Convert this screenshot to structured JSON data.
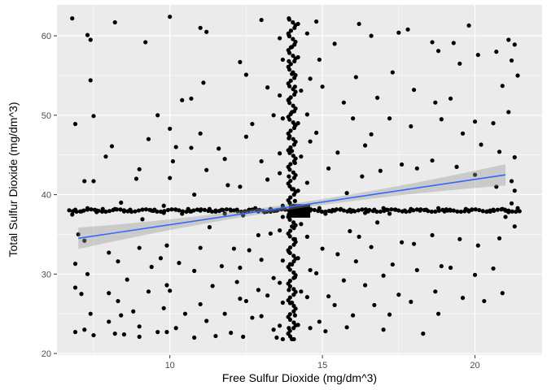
{
  "chart_data": {
    "type": "scatter",
    "xlabel": "Free Sulfur Dioxide (mg/dm^3)",
    "ylabel": "Total Sulfur Dioxide (mg/dm^3)",
    "xlim": [
      6.3,
      22.2
    ],
    "ylim": [
      19.8,
      63.9
    ],
    "x_ticks": [
      10,
      15,
      20
    ],
    "y_ticks": [
      20,
      30,
      40,
      50,
      60
    ],
    "grid": true,
    "panel_background": "#ebebeb",
    "point_color": "#000000",
    "trend_line": {
      "type": "linear",
      "x": [
        7,
        21
      ],
      "y": [
        34.5,
        42.5
      ],
      "color": "#3366ff",
      "confidence_band_color": "#999999"
    },
    "clusters": {
      "horizontal_band_y": 38,
      "vertical_band_x": 14
    },
    "points": [
      [
        6.8,
        62.2
      ],
      [
        7.3,
        60.1
      ],
      [
        7.4,
        59.5
      ],
      [
        7.4,
        54.4
      ],
      [
        7.5,
        49.9
      ],
      [
        6.9,
        48.9
      ],
      [
        7.2,
        41.7
      ],
      [
        7.5,
        41.7
      ],
      [
        6.9,
        38.1
      ],
      [
        7.1,
        37.9
      ],
      [
        7.3,
        38.3
      ],
      [
        7.6,
        38.0
      ],
      [
        6.8,
        37.5
      ],
      [
        7.0,
        35.0
      ],
      [
        7.2,
        34.2
      ],
      [
        6.9,
        31.3
      ],
      [
        7.3,
        30.0
      ],
      [
        6.9,
        28.3
      ],
      [
        7.1,
        27.5
      ],
      [
        7.4,
        25.0
      ],
      [
        6.9,
        22.7
      ],
      [
        7.2,
        23.0
      ],
      [
        7.5,
        22.3
      ],
      [
        8.0,
        24.0
      ],
      [
        8.2,
        22.5
      ],
      [
        8.2,
        61.7
      ],
      [
        8.1,
        46.1
      ],
      [
        7.9,
        44.8
      ],
      [
        8.4,
        39.0
      ],
      [
        8.2,
        38.2
      ],
      [
        7.8,
        38.2
      ],
      [
        8.5,
        37.9
      ],
      [
        8.0,
        32.7
      ],
      [
        8.3,
        31.6
      ],
      [
        8.6,
        29.3
      ],
      [
        8.0,
        27.6
      ],
      [
        8.3,
        26.6
      ],
      [
        8.8,
        25.3
      ],
      [
        8.4,
        24.8
      ],
      [
        9.0,
        23.4
      ],
      [
        8.5,
        22.4
      ],
      [
        9.2,
        59.2
      ],
      [
        9.6,
        50.0
      ],
      [
        9.3,
        47.0
      ],
      [
        9.0,
        43.2
      ],
      [
        8.9,
        42.0
      ],
      [
        9.5,
        38.1
      ],
      [
        9.8,
        37.7
      ],
      [
        9.1,
        36.9
      ],
      [
        9.0,
        33.3
      ],
      [
        9.7,
        32.0
      ],
      [
        9.4,
        30.9
      ],
      [
        9.3,
        27.8
      ],
      [
        9.8,
        25.7
      ],
      [
        9.6,
        22.7
      ],
      [
        9.0,
        22.1
      ],
      [
        10.0,
        62.4
      ],
      [
        10.0,
        48.3
      ],
      [
        10.2,
        46.0
      ],
      [
        10.1,
        44.2
      ],
      [
        10.0,
        42.1
      ],
      [
        9.8,
        38.6
      ],
      [
        10.2,
        38.1
      ],
      [
        10.4,
        37.6
      ],
      [
        9.9,
        33.6
      ],
      [
        10.3,
        31.4
      ],
      [
        9.9,
        28.6
      ],
      [
        10.0,
        27.9
      ],
      [
        10.5,
        25.0
      ],
      [
        10.2,
        23.2
      ],
      [
        9.9,
        22.7
      ],
      [
        10.7,
        52.1
      ],
      [
        10.4,
        51.9
      ],
      [
        11.0,
        61.0
      ],
      [
        11.2,
        60.5
      ],
      [
        11.1,
        54.1
      ],
      [
        11.0,
        47.7
      ],
      [
        10.7,
        45.9
      ],
      [
        11.2,
        43.1
      ],
      [
        10.8,
        40.0
      ],
      [
        11.3,
        38.2
      ],
      [
        11.0,
        38.0
      ],
      [
        10.7,
        37.9
      ],
      [
        11.3,
        35.9
      ],
      [
        11.0,
        33.3
      ],
      [
        10.8,
        30.4
      ],
      [
        11.4,
        28.5
      ],
      [
        11.0,
        26.2
      ],
      [
        11.2,
        24.1
      ],
      [
        10.8,
        22.0
      ],
      [
        11.5,
        22.2
      ],
      [
        11.6,
        45.8
      ],
      [
        11.8,
        44.5
      ],
      [
        11.9,
        41.2
      ],
      [
        11.7,
        38.1
      ],
      [
        12.0,
        38.0
      ],
      [
        11.8,
        37.6
      ],
      [
        12.1,
        33.2
      ],
      [
        11.7,
        31.0
      ],
      [
        12.2,
        29.0
      ],
      [
        12.3,
        26.9
      ],
      [
        11.8,
        25.0
      ],
      [
        12.0,
        22.6
      ],
      [
        12.3,
        56.7
      ],
      [
        12.5,
        55.1
      ],
      [
        12.7,
        48.9
      ],
      [
        12.5,
        47.3
      ],
      [
        12.3,
        41.0
      ],
      [
        12.6,
        38.1
      ],
      [
        12.8,
        38.3
      ],
      [
        12.4,
        37.4
      ],
      [
        12.9,
        34.9
      ],
      [
        12.6,
        33.0
      ],
      [
        12.3,
        30.8
      ],
      [
        12.9,
        28.0
      ],
      [
        12.5,
        26.6
      ],
      [
        12.7,
        24.5
      ],
      [
        12.4,
        22.1
      ],
      [
        13.0,
        62.0
      ],
      [
        13.2,
        53.5
      ],
      [
        13.4,
        50.0
      ],
      [
        13.0,
        44.2
      ],
      [
        13.2,
        41.9
      ],
      [
        13.3,
        38.2
      ],
      [
        13.1,
        37.8
      ],
      [
        13.5,
        38.0
      ],
      [
        13.3,
        35.1
      ],
      [
        13.0,
        31.8
      ],
      [
        13.4,
        29.5
      ],
      [
        13.2,
        27.3
      ],
      [
        13.0,
        24.7
      ],
      [
        13.4,
        23.0
      ],
      [
        13.5,
        22.0
      ],
      [
        13.6,
        59.7
      ],
      [
        13.7,
        57.0
      ],
      [
        13.6,
        52.5
      ],
      [
        13.7,
        49.6
      ],
      [
        13.6,
        45.2
      ],
      [
        13.6,
        42.7
      ],
      [
        13.7,
        38.6
      ],
      [
        13.7,
        37.2
      ],
      [
        13.6,
        35.5
      ],
      [
        13.7,
        31.7
      ],
      [
        13.6,
        28.9
      ],
      [
        13.7,
        26.4
      ],
      [
        13.6,
        23.5
      ],
      [
        13.7,
        21.8
      ],
      [
        13.9,
        62.2
      ],
      [
        13.9,
        60.1
      ],
      [
        14.0,
        58.6
      ],
      [
        13.9,
        56.8
      ],
      [
        14.0,
        55.2
      ],
      [
        14.1,
        53.6
      ],
      [
        13.9,
        52.0
      ],
      [
        14.0,
        50.4
      ],
      [
        14.1,
        48.8
      ],
      [
        13.9,
        47.1
      ],
      [
        14.0,
        45.5
      ],
      [
        14.1,
        44.0
      ],
      [
        13.9,
        42.3
      ],
      [
        14.0,
        40.7
      ],
      [
        14.1,
        39.2
      ],
      [
        13.9,
        37.5
      ],
      [
        14.0,
        36.0
      ],
      [
        14.1,
        34.4
      ],
      [
        13.9,
        32.8
      ],
      [
        14.0,
        31.2
      ],
      [
        14.1,
        29.6
      ],
      [
        13.9,
        28.0
      ],
      [
        14.0,
        26.4
      ],
      [
        14.1,
        24.8
      ],
      [
        13.9,
        23.2
      ],
      [
        14.0,
        21.8
      ],
      [
        14.2,
        61.5
      ],
      [
        14.2,
        57.3
      ],
      [
        14.3,
        53.1
      ],
      [
        14.2,
        49.0
      ],
      [
        14.3,
        44.8
      ],
      [
        14.2,
        40.5
      ],
      [
        14.3,
        36.3
      ],
      [
        14.2,
        32.0
      ],
      [
        14.3,
        27.8
      ],
      [
        14.2,
        23.6
      ],
      [
        14.5,
        60.3
      ],
      [
        14.6,
        54.6
      ],
      [
        14.5,
        50.1
      ],
      [
        14.6,
        46.7
      ],
      [
        14.5,
        41.5
      ],
      [
        14.6,
        38.0
      ],
      [
        14.5,
        34.7
      ],
      [
        14.6,
        30.5
      ],
      [
        14.5,
        27.1
      ],
      [
        14.6,
        23.2
      ],
      [
        14.8,
        61.8
      ],
      [
        14.9,
        57.0
      ],
      [
        15.0,
        53.6
      ],
      [
        14.8,
        47.8
      ],
      [
        15.2,
        43.3
      ],
      [
        14.9,
        38.3
      ],
      [
        15.1,
        37.6
      ],
      [
        15.0,
        33.2
      ],
      [
        14.8,
        30.1
      ],
      [
        15.2,
        27.2
      ],
      [
        14.9,
        24.0
      ],
      [
        15.1,
        22.8
      ],
      [
        15.4,
        59.0
      ],
      [
        15.7,
        51.6
      ],
      [
        15.5,
        45.3
      ],
      [
        15.8,
        40.2
      ],
      [
        15.6,
        38.2
      ],
      [
        15.3,
        37.9
      ],
      [
        15.9,
        35.4
      ],
      [
        15.5,
        32.5
      ],
      [
        15.7,
        29.2
      ],
      [
        15.4,
        26.1
      ],
      [
        15.8,
        23.3
      ],
      [
        16.2,
        61.5
      ],
      [
        16.1,
        54.8
      ],
      [
        16.0,
        49.6
      ],
      [
        16.4,
        46.2
      ],
      [
        16.3,
        42.3
      ],
      [
        16.0,
        38.0
      ],
      [
        16.4,
        37.7
      ],
      [
        16.2,
        34.7
      ],
      [
        16.1,
        31.6
      ],
      [
        16.4,
        28.6
      ],
      [
        16.0,
        24.8
      ],
      [
        16.6,
        60.0
      ],
      [
        16.8,
        52.2
      ],
      [
        16.6,
        47.6
      ],
      [
        16.9,
        43.0
      ],
      [
        16.7,
        38.1
      ],
      [
        17.0,
        38.3
      ],
      [
        16.8,
        36.5
      ],
      [
        16.6,
        33.4
      ],
      [
        17.0,
        29.8
      ],
      [
        16.7,
        26.1
      ],
      [
        17.0,
        23.0
      ],
      [
        17.5,
        60.4
      ],
      [
        17.3,
        55.4
      ],
      [
        17.2,
        49.6
      ],
      [
        17.6,
        43.8
      ],
      [
        17.4,
        38.1
      ],
      [
        17.2,
        37.6
      ],
      [
        17.6,
        34.0
      ],
      [
        17.3,
        31.2
      ],
      [
        17.5,
        27.4
      ],
      [
        17.2,
        24.9
      ],
      [
        17.8,
        60.8
      ],
      [
        18.0,
        53.2
      ],
      [
        17.9,
        48.6
      ],
      [
        18.1,
        43.3
      ],
      [
        17.9,
        38.2
      ],
      [
        18.2,
        38.0
      ],
      [
        18.0,
        33.8
      ],
      [
        18.1,
        30.5
      ],
      [
        17.9,
        26.5
      ],
      [
        18.3,
        22.5
      ],
      [
        18.6,
        59.2
      ],
      [
        18.8,
        58.1
      ],
      [
        18.7,
        51.6
      ],
      [
        18.9,
        49.5
      ],
      [
        18.6,
        44.3
      ],
      [
        18.8,
        38.3
      ],
      [
        19.0,
        37.9
      ],
      [
        18.6,
        34.9
      ],
      [
        18.9,
        31.0
      ],
      [
        18.7,
        27.8
      ],
      [
        18.8,
        25.0
      ],
      [
        19.3,
        59.1
      ],
      [
        19.5,
        56.5
      ],
      [
        19.2,
        52.1
      ],
      [
        19.6,
        47.7
      ],
      [
        19.4,
        43.5
      ],
      [
        19.2,
        38.0
      ],
      [
        19.7,
        38.2
      ],
      [
        19.5,
        34.4
      ],
      [
        19.2,
        30.8
      ],
      [
        19.6,
        27.0
      ],
      [
        19.8,
        61.3
      ],
      [
        20.1,
        57.6
      ],
      [
        20.0,
        49.2
      ],
      [
        20.2,
        46.3
      ],
      [
        20.0,
        42.5
      ],
      [
        19.9,
        38.1
      ],
      [
        20.4,
        37.9
      ],
      [
        20.1,
        33.6
      ],
      [
        20.0,
        29.9
      ],
      [
        20.3,
        26.6
      ],
      [
        20.7,
        58.0
      ],
      [
        20.9,
        53.7
      ],
      [
        20.6,
        49.0
      ],
      [
        20.8,
        45.4
      ],
      [
        20.7,
        41.0
      ],
      [
        20.9,
        38.2
      ],
      [
        20.5,
        38.0
      ],
      [
        20.8,
        34.5
      ],
      [
        20.6,
        30.7
      ],
      [
        20.9,
        27.6
      ],
      [
        21.1,
        59.5
      ],
      [
        21.3,
        58.9
      ],
      [
        21.2,
        56.9
      ],
      [
        21.4,
        55.0
      ],
      [
        21.1,
        50.4
      ],
      [
        21.3,
        44.7
      ],
      [
        21.2,
        41.7
      ],
      [
        21.4,
        38.3
      ],
      [
        21.1,
        37.8
      ],
      [
        21.3,
        36.0
      ],
      [
        21.2,
        38.9
      ],
      [
        21.3,
        40.5
      ],
      [
        21.0,
        37.2
      ],
      [
        7.6,
        37.8
      ],
      [
        8.7,
        38.1
      ],
      [
        9.4,
        38.0
      ],
      [
        10.6,
        38.2
      ],
      [
        11.5,
        38.0
      ],
      [
        12.2,
        38.1
      ],
      [
        12.9,
        37.9
      ],
      [
        13.3,
        38.0
      ],
      [
        15.4,
        38.0
      ],
      [
        15.9,
        38.1
      ],
      [
        16.5,
        37.9
      ],
      [
        17.1,
        38.1
      ],
      [
        17.7,
        38.0
      ],
      [
        18.4,
        38.1
      ],
      [
        19.1,
        38.0
      ],
      [
        19.8,
        37.9
      ],
      [
        20.6,
        38.1
      ],
      [
        21.0,
        38.0
      ]
    ]
  }
}
